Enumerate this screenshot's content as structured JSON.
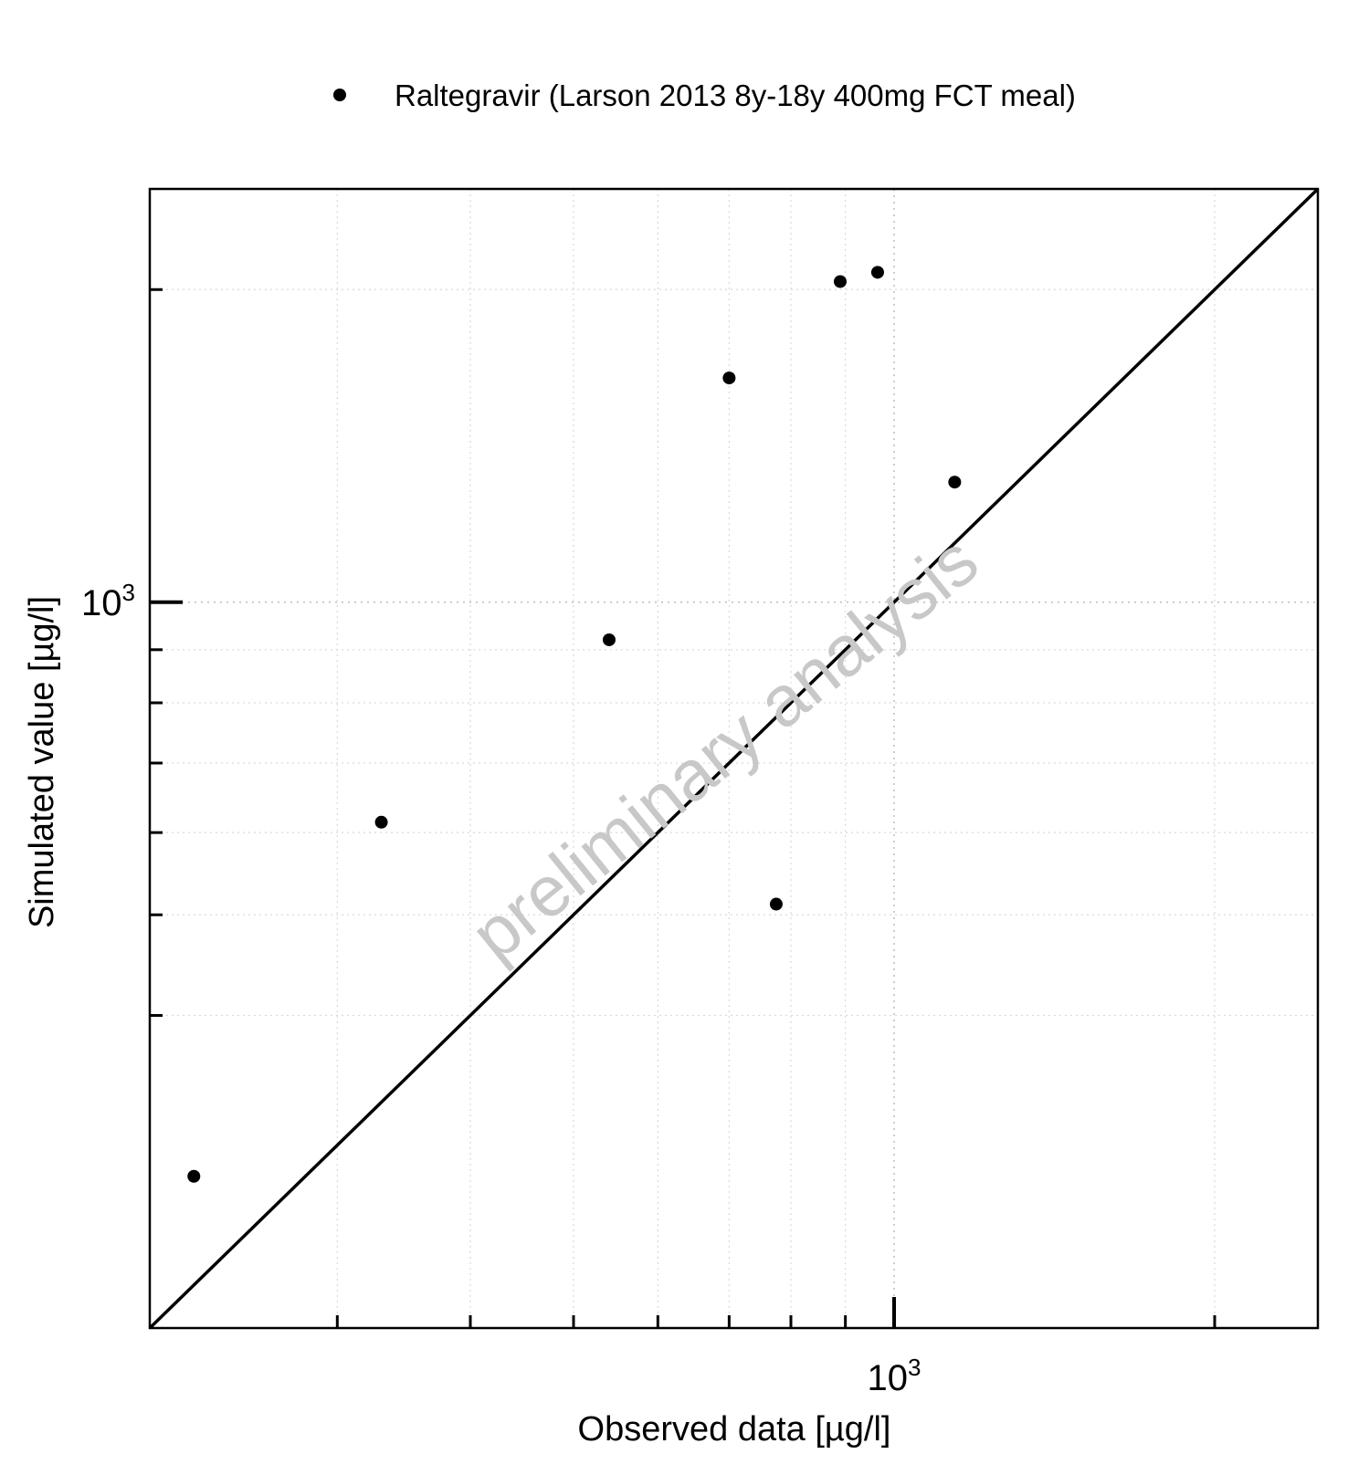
{
  "chart_data": {
    "type": "scatter",
    "xlabel": "Observed data [µg/l]",
    "ylabel": "Simulated value [µg/l]",
    "x_scale": "log",
    "y_scale": "log",
    "xlim": [
      200,
      2500
    ],
    "ylim": [
      200,
      2500
    ],
    "x_tick_labels": [
      {
        "base": "10",
        "exp": "3",
        "value": 1000
      }
    ],
    "y_tick_labels": [
      {
        "base": "10",
        "exp": "3",
        "value": 1000
      }
    ],
    "x_minor_ticks": [
      300,
      400,
      500,
      600,
      700,
      800,
      900,
      2000
    ],
    "y_minor_ticks": [
      400,
      500,
      600,
      700,
      800,
      900,
      2000
    ],
    "grid": true,
    "legend_position": "top-center",
    "identity_line": true,
    "watermark": "preliminary analysis",
    "series": [
      {
        "name": "Raltegravir (Larson 2013 8y-18y 400mg FCT meal)",
        "color": "#000000",
        "marker": "circle",
        "x": [
          220,
          330,
          540,
          700,
          775,
          890,
          965,
          1140
        ],
        "y": [
          280,
          614,
          920,
          1644,
          512,
          2036,
          2078,
          1305
        ]
      }
    ]
  }
}
